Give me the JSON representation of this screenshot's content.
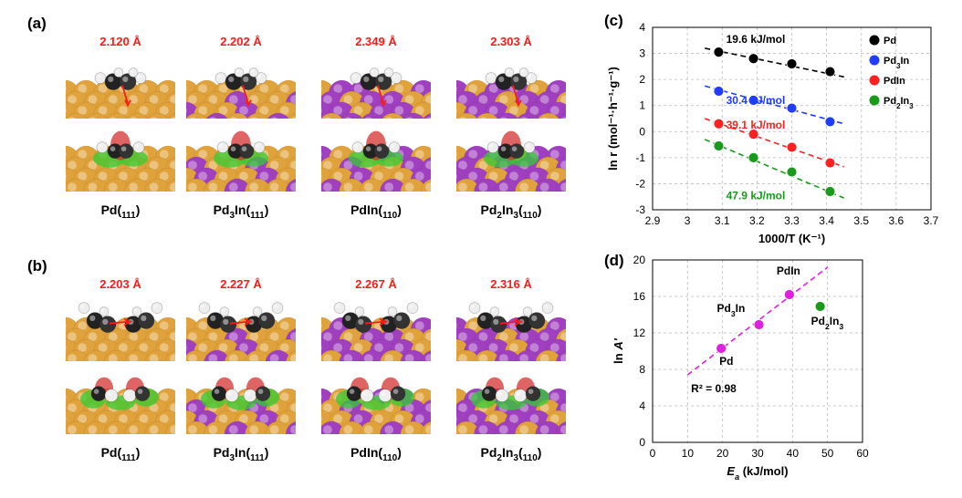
{
  "panels": {
    "a": {
      "label": "(a)",
      "distances": [
        "2.120 Å",
        "2.202 Å",
        "2.349 Å",
        "2.303 Å"
      ],
      "surfaces": [
        "Pd(111)",
        "Pd3In(111)",
        "PdIn(110)",
        "Pd2In3(110)"
      ]
    },
    "b": {
      "label": "(b)",
      "distances": [
        "2.203 Å",
        "2.227 Å",
        "2.267 Å",
        "2.316 Å"
      ],
      "surfaces": [
        "Pd(111)",
        "Pd3In(111)",
        "PdIn(110)",
        "Pd2In3(110)"
      ]
    }
  },
  "colors": {
    "pd_atom": "#e0a23a",
    "in_atom": "#a040c0",
    "pd_series": "#000000",
    "pd3in_series": "#1f3cff",
    "pdin_series": "#ff2020",
    "pd2in3_series": "#1a9a1a",
    "fit_d": "#e020e0",
    "distance_text": "#ff1a1a"
  },
  "chart_data": [
    {
      "panel": "(c)",
      "type": "scatter",
      "xlabel": "1000/T (K⁻¹)",
      "ylabel": "ln r (mol⁻¹·h⁻¹·g⁻¹)",
      "xlim": [
        2.9,
        3.7
      ],
      "ylim": [
        -3,
        4
      ],
      "xticks": [
        "2.9",
        "3",
        "3.1",
        "3.2",
        "3.3",
        "3.4",
        "3.5",
        "3.6",
        "3.7"
      ],
      "yticks": [
        "-3",
        "-2",
        "-1",
        "0",
        "1",
        "2",
        "3",
        "4"
      ],
      "grid": true,
      "legend_position": "top-right",
      "series": [
        {
          "name": "Pd",
          "x": [
            3.09,
            3.19,
            3.3,
            3.41
          ],
          "y": [
            3.05,
            2.8,
            2.6,
            2.3
          ],
          "fit": [
            [
              3.05,
              3.2
            ],
            [
              3.45,
              2.1
            ]
          ],
          "annotation": "19.6 kJ/mol"
        },
        {
          "name": "Pd3In",
          "x": [
            3.09,
            3.19,
            3.3,
            3.41
          ],
          "y": [
            1.55,
            1.2,
            0.9,
            0.38
          ],
          "fit": [
            [
              3.05,
              1.75
            ],
            [
              3.45,
              0.3
            ]
          ],
          "annotation": "30.4 kJ/mol"
        },
        {
          "name": "PdIn",
          "x": [
            3.09,
            3.19,
            3.3,
            3.41
          ],
          "y": [
            0.3,
            -0.1,
            -0.6,
            -1.2
          ],
          "fit": [
            [
              3.05,
              0.5
            ],
            [
              3.45,
              -1.35
            ]
          ],
          "annotation": "39.1 kJ/mol"
        },
        {
          "name": "Pd2In3",
          "x": [
            3.09,
            3.19,
            3.3,
            3.41
          ],
          "y": [
            -0.55,
            -1.0,
            -1.55,
            -2.3
          ],
          "fit": [
            [
              3.05,
              -0.3
            ],
            [
              3.45,
              -2.55
            ]
          ],
          "annotation": "47.9 kJ/mol"
        }
      ]
    },
    {
      "panel": "(d)",
      "type": "scatter",
      "xlabel": "Ea (kJ/mol)",
      "ylabel": "ln A'",
      "xlim": [
        0,
        60
      ],
      "ylim": [
        0,
        20
      ],
      "xticks": [
        "0",
        "10",
        "20",
        "30",
        "40",
        "50",
        "60"
      ],
      "yticks": [
        "0",
        "4",
        "8",
        "12",
        "16",
        "20"
      ],
      "grid": true,
      "points": [
        {
          "label": "Pd",
          "x": 19.6,
          "y": 10.3,
          "color": "#e020e0"
        },
        {
          "label": "Pd3In",
          "x": 30.4,
          "y": 12.9,
          "color": "#e020e0"
        },
        {
          "label": "PdIn",
          "x": 39.1,
          "y": 16.2,
          "color": "#e020e0"
        },
        {
          "label": "Pd2In3",
          "x": 47.9,
          "y": 14.9,
          "color": "#1a9a1a"
        }
      ],
      "fit": [
        [
          10,
          7.4
        ],
        [
          50,
          19.2
        ]
      ],
      "annotation": "R² = 0.98"
    }
  ]
}
